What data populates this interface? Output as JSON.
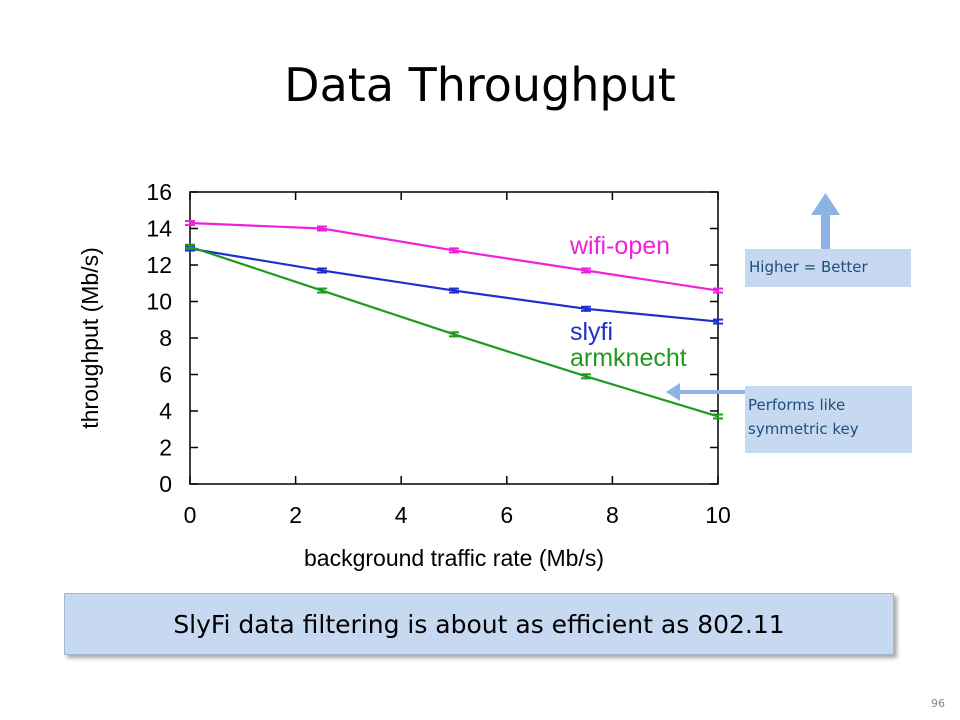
{
  "slide": {
    "title": "Data Throughput",
    "summary": "SlyFi data filtering is about as efficient as 802.11",
    "page_number": "96"
  },
  "callouts": {
    "higher": "Higher = Better",
    "performs_line1": "Performs like",
    "performs_line2": "symmetric key"
  },
  "chart_data": {
    "type": "line",
    "title": "",
    "xlabel": "background traffic rate (Mb/s)",
    "ylabel": "throughput (Mb/s)",
    "xlim": [
      0,
      10
    ],
    "ylim": [
      0,
      16
    ],
    "xticks": [
      0,
      2,
      4,
      6,
      8,
      10
    ],
    "yticks": [
      0,
      2,
      4,
      6,
      8,
      10,
      12,
      14,
      16
    ],
    "grid": false,
    "legend": "inline labels right of lines",
    "x": [
      0,
      2.5,
      5,
      7.5,
      10
    ],
    "series": [
      {
        "name": "wifi-open",
        "color": "#ee22dd",
        "values": [
          14.3,
          14.0,
          12.8,
          11.7,
          10.6
        ]
      },
      {
        "name": "slyfi",
        "color": "#1f2ecf",
        "values": [
          12.9,
          11.7,
          10.6,
          9.6,
          8.9
        ]
      },
      {
        "name": "armknecht",
        "color": "#1f9a1f",
        "values": [
          13.0,
          10.6,
          8.2,
          5.9,
          3.7
        ]
      }
    ]
  },
  "colors": {
    "callout_bg": "#c6d9f1",
    "callout_text": "#1f4e79",
    "arrow": "#8db3e2"
  }
}
